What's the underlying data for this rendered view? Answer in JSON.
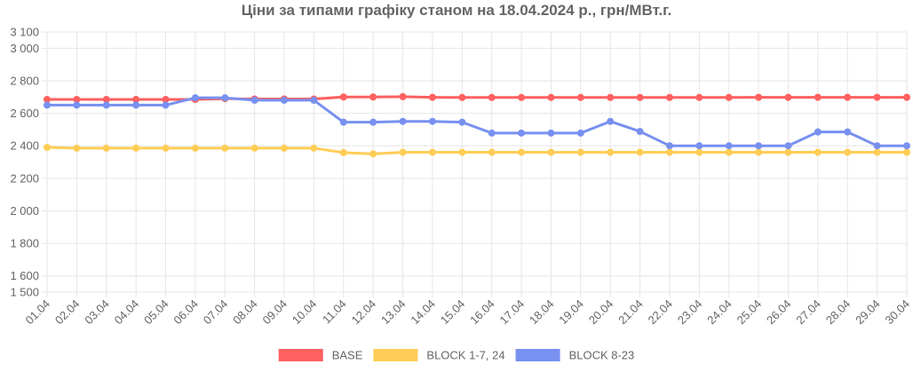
{
  "chart_data": {
    "type": "line",
    "title": "Ціни за типами графіку станом на 18.04.2024 р., грн/МВт.г.",
    "xlabel": "",
    "ylabel": "",
    "ylim": [
      1500,
      3100
    ],
    "yticks": [
      {
        "value": 3100,
        "label": "3 100"
      },
      {
        "value": 3000,
        "label": "3 000"
      },
      {
        "value": 2800,
        "label": "2 800"
      },
      {
        "value": 2600,
        "label": "2 600"
      },
      {
        "value": 2400,
        "label": "2 400"
      },
      {
        "value": 2200,
        "label": "2 200"
      },
      {
        "value": 2000,
        "label": "2 000"
      },
      {
        "value": 1800,
        "label": "1 800"
      },
      {
        "value": 1600,
        "label": "1 600"
      },
      {
        "value": 1500,
        "label": "1 500"
      }
    ],
    "grid": true,
    "legend_position": "bottom",
    "categories": [
      "01.04",
      "02.04",
      "03.04",
      "04.04",
      "05.04",
      "06.04",
      "07.04",
      "08.04",
      "09.04",
      "10.04",
      "11.04",
      "12.04",
      "13.04",
      "14.04",
      "15.04",
      "16.04",
      "17.04",
      "18.04",
      "19.04",
      "20.04",
      "21.04",
      "22.04",
      "23.04",
      "24.04",
      "25.04",
      "26.04",
      "27.04",
      "28.04",
      "29.04",
      "30.04"
    ],
    "series": [
      {
        "name": "BASE",
        "color": "#ff6060",
        "values": [
          2685,
          2685,
          2685,
          2685,
          2685,
          2685,
          2690,
          2688,
          2688,
          2688,
          2700,
          2700,
          2702,
          2698,
          2697,
          2697,
          2697,
          2697,
          2697,
          2697,
          2697,
          2697,
          2697,
          2697,
          2698,
          2698,
          2698,
          2698,
          2698,
          2698
        ]
      },
      {
        "name": "BLOCK 1-7, 24",
        "color": "#ffcd56",
        "values": [
          2390,
          2385,
          2385,
          2385,
          2385,
          2385,
          2385,
          2385,
          2385,
          2385,
          2358,
          2350,
          2360,
          2360,
          2360,
          2360,
          2360,
          2360,
          2360,
          2360,
          2360,
          2360,
          2360,
          2360,
          2360,
          2360,
          2360,
          2360,
          2360,
          2360
        ]
      },
      {
        "name": "BLOCK 8-23",
        "color": "#7890f0",
        "values": [
          2650,
          2650,
          2650,
          2650,
          2650,
          2695,
          2695,
          2680,
          2680,
          2680,
          2545,
          2545,
          2550,
          2550,
          2545,
          2478,
          2478,
          2478,
          2478,
          2550,
          2488,
          2400,
          2400,
          2400,
          2400,
          2400,
          2485,
          2485,
          2400,
          2400
        ]
      }
    ]
  }
}
